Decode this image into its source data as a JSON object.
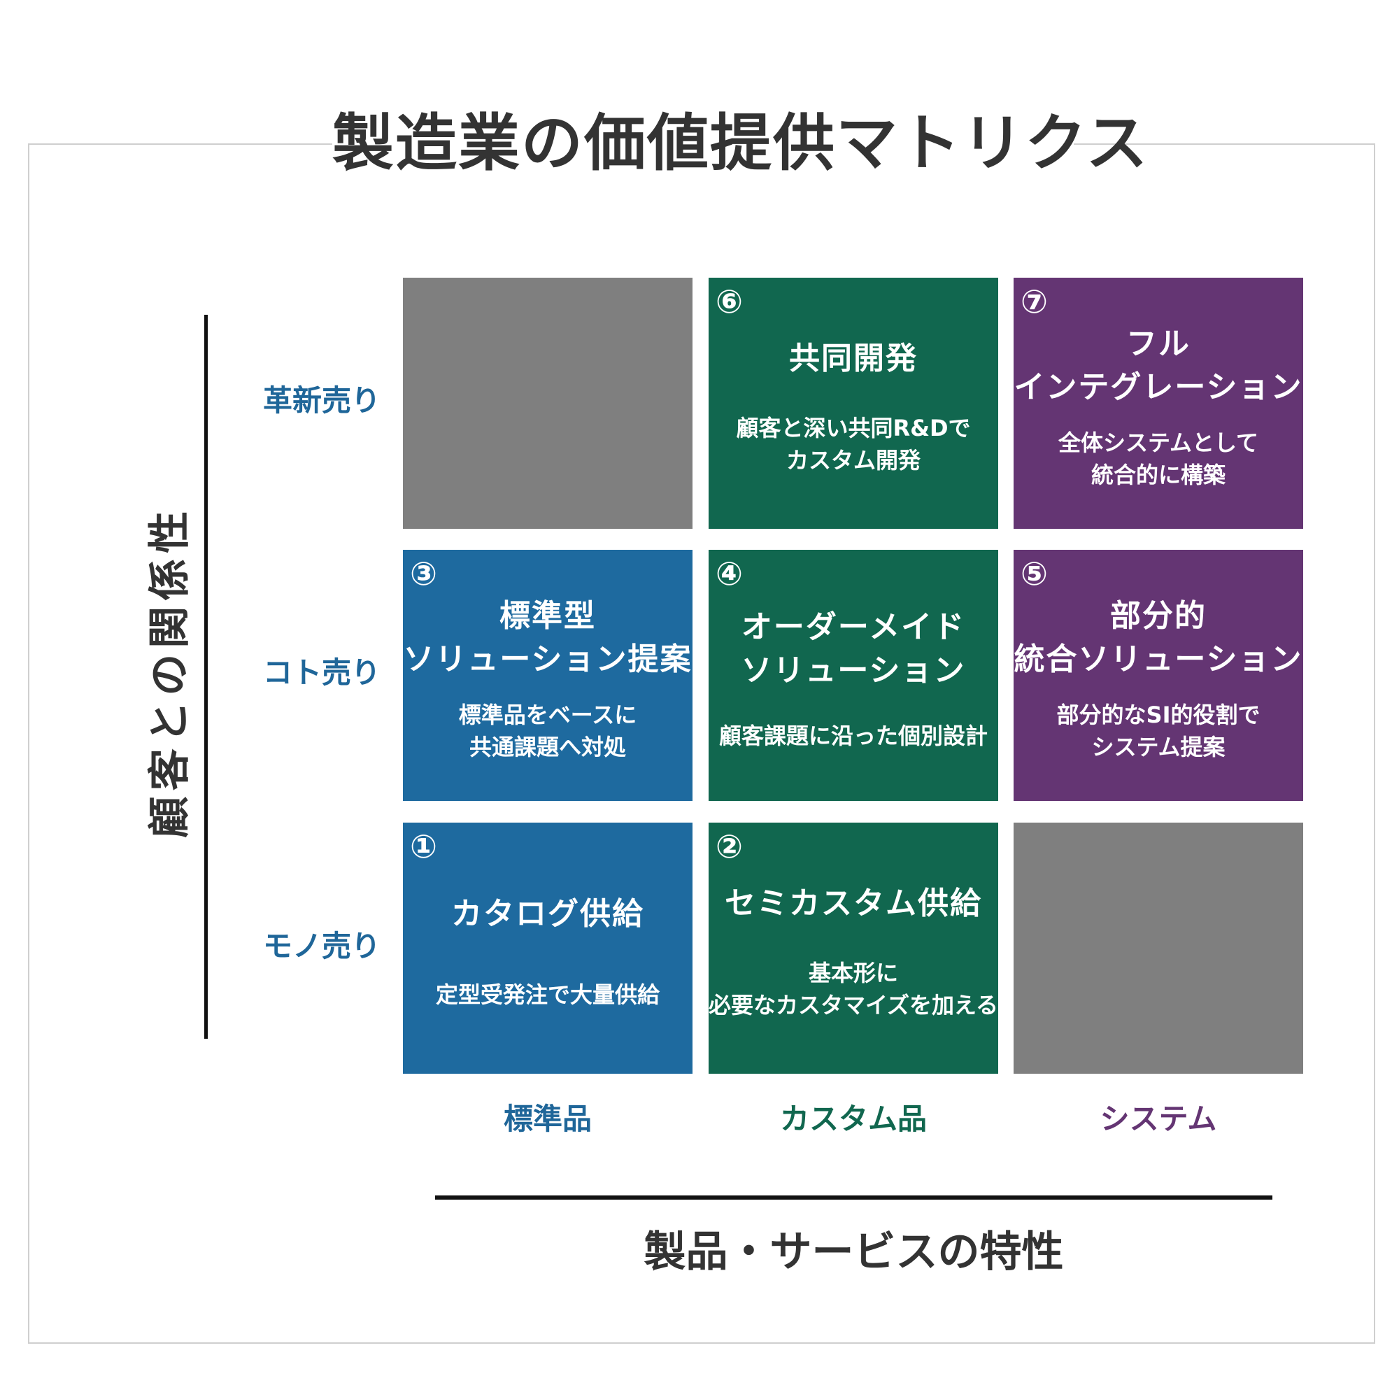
{
  "title": "製造業の価値提供マトリクス",
  "y_axis_title": "顧客との関係性",
  "x_axis_title": "製品・サービスの特性",
  "rows": [
    "革新売り",
    "コト売り",
    "モノ売り"
  ],
  "columns": [
    {
      "label": "標準品",
      "color": "#1f6699"
    },
    {
      "label": "カスタム品",
      "color": "#11674f"
    },
    {
      "label": "システム",
      "color": "#643573"
    }
  ],
  "colors": {
    "blue": "#1e6a9f",
    "green": "#11674f",
    "purple": "#643573",
    "gray": "#7f7f7f"
  },
  "cells": {
    "c1": {
      "number": "①",
      "head": [
        "カタログ供給"
      ],
      "desc": [
        "定型受発注で大量供給"
      ]
    },
    "c2": {
      "number": "②",
      "head": [
        "セミカスタム供給"
      ],
      "desc": [
        "基本形に",
        "必要なカスタマイズを加える"
      ]
    },
    "c3": {
      "number": "③",
      "head": [
        "標準型",
        "ソリューション提案"
      ],
      "desc": [
        "標準品をベースに",
        "共通課題へ対処"
      ]
    },
    "c4": {
      "number": "④",
      "head": [
        "オーダーメイド",
        "ソリューション"
      ],
      "desc": [
        "顧客課題に沿った個別設計"
      ]
    },
    "c5": {
      "number": "⑤",
      "head": [
        "部分的",
        "統合ソリューション"
      ],
      "desc": [
        "部分的なSI的役割で",
        "システム提案"
      ]
    },
    "c6": {
      "number": "⑥",
      "head": [
        "共同開発"
      ],
      "desc": [
        "顧客と深い共同R&Dで",
        "カスタム開発"
      ]
    },
    "c7": {
      "number": "⑦",
      "head": [
        "フル",
        "インテグレーション"
      ],
      "desc": [
        "全体システムとして",
        "統合的に構築"
      ]
    }
  }
}
